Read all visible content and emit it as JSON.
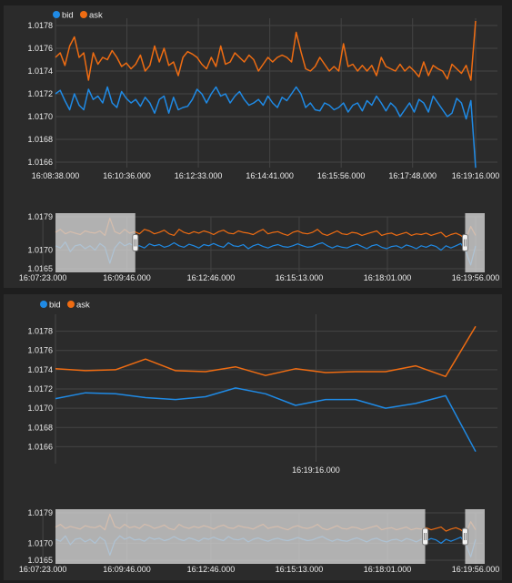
{
  "colors": {
    "bid": "#1f8ae5",
    "ask": "#ef6c12",
    "grid": "#444444",
    "selection": "#cfcfcf"
  },
  "chart_data": [
    {
      "type": "line",
      "role": "main",
      "legend": [
        "bid",
        "ask"
      ],
      "ylim": [
        1.0166,
        1.0178
      ],
      "yticks": [
        "1.0178",
        "1.0176",
        "1.0174",
        "1.0172",
        "1.0170",
        "1.0168",
        "1.0166"
      ],
      "xticks": [
        "16:08:38.000",
        "16:10:36.000",
        "16:12:33.000",
        "16:14:41.000",
        "16:15:56.000",
        "16:17:48.000",
        "16:19:16.000"
      ],
      "grid": true,
      "legend_position": "top-left",
      "series": [
        {
          "name": "bid",
          "values": [
            1.0172,
            1.01723,
            1.01714,
            1.01706,
            1.0172,
            1.0171,
            1.01706,
            1.01724,
            1.01715,
            1.01718,
            1.01712,
            1.01726,
            1.01712,
            1.01708,
            1.01722,
            1.01716,
            1.01712,
            1.01715,
            1.01709,
            1.01717,
            1.01712,
            1.01703,
            1.01715,
            1.01718,
            1.01703,
            1.01717,
            1.01706,
            1.01708,
            1.01709,
            1.01715,
            1.01724,
            1.0172,
            1.01712,
            1.0172,
            1.01726,
            1.01718,
            1.0172,
            1.01712,
            1.01718,
            1.01722,
            1.01715,
            1.0171,
            1.01712,
            1.01715,
            1.0171,
            1.01718,
            1.01712,
            1.01708,
            1.01717,
            1.01714,
            1.0172,
            1.01726,
            1.0172,
            1.01708,
            1.01712,
            1.01706,
            1.01705,
            1.01712,
            1.0171,
            1.01706,
            1.01708,
            1.01712,
            1.01704,
            1.0171,
            1.01712,
            1.01705,
            1.01714,
            1.0171,
            1.01718,
            1.01712,
            1.01705,
            1.01712,
            1.01708,
            1.017,
            1.01706,
            1.01712,
            1.01704,
            1.01715,
            1.01712,
            1.01704,
            1.01718,
            1.01712,
            1.01706,
            1.017,
            1.01703,
            1.01716,
            1.01712,
            1.01698,
            1.01714,
            1.01655
          ]
        },
        {
          "name": "ask",
          "values": [
            1.01752,
            1.01756,
            1.01745,
            1.01762,
            1.0177,
            1.01752,
            1.01756,
            1.01732,
            1.01756,
            1.01746,
            1.01752,
            1.0175,
            1.01758,
            1.01752,
            1.01744,
            1.01747,
            1.01742,
            1.01746,
            1.01754,
            1.0174,
            1.01745,
            1.01762,
            1.01748,
            1.0176,
            1.01745,
            1.01748,
            1.01736,
            1.01752,
            1.01757,
            1.01755,
            1.01752,
            1.01746,
            1.01742,
            1.01752,
            1.01744,
            1.01762,
            1.01746,
            1.01748,
            1.01756,
            1.01752,
            1.01748,
            1.01754,
            1.0175,
            1.0174,
            1.01746,
            1.01752,
            1.01748,
            1.01752,
            1.01754,
            1.01752,
            1.01748,
            1.01774,
            1.01757,
            1.01742,
            1.0174,
            1.01744,
            1.01752,
            1.01746,
            1.0174,
            1.01744,
            1.0174,
            1.01764,
            1.01744,
            1.01746,
            1.0174,
            1.01745,
            1.0174,
            1.01745,
            1.01736,
            1.01752,
            1.01744,
            1.01742,
            1.0174,
            1.01746,
            1.0174,
            1.01744,
            1.0174,
            1.01735,
            1.01748,
            1.01736,
            1.01745,
            1.01742,
            1.0174,
            1.01733,
            1.01746,
            1.01742,
            1.01738,
            1.01745,
            1.01732,
            1.01784
          ]
        }
      ]
    },
    {
      "type": "line",
      "role": "navigator",
      "ylim": [
        1.0165,
        1.0179
      ],
      "yticks": [
        "1.0179",
        "1.0170",
        "1.0165"
      ],
      "xticks": [
        "16:07:23.000",
        "16:09:46.000",
        "16:12:46.000",
        "16:15:13.000",
        "16:18:01.000",
        "16:19:56.000"
      ],
      "selection": [
        0.19,
        0.975
      ],
      "series": [
        {
          "name": "bid",
          "values": [
            1.01712,
            1.01706,
            1.01722,
            1.01696,
            1.01712,
            1.01715,
            1.01704,
            1.01712,
            1.017,
            1.01718,
            1.01708,
            1.01665,
            1.01706,
            1.01722,
            1.01712,
            1.01718,
            1.0171,
            1.01712,
            1.01706,
            1.01717,
            1.01712,
            1.01715,
            1.01708,
            1.01712,
            1.0172,
            1.01712,
            1.01708,
            1.01716,
            1.01712,
            1.01706,
            1.01715,
            1.01712,
            1.01718,
            1.01712,
            1.01708,
            1.0172,
            1.01712,
            1.0171,
            1.01715,
            1.01704,
            1.01712,
            1.01716,
            1.0171,
            1.01706,
            1.01712,
            1.01715,
            1.0171,
            1.01708,
            1.01712,
            1.01717,
            1.01712,
            1.01708,
            1.0171,
            1.01716,
            1.0172,
            1.01712,
            1.01706,
            1.01712,
            1.01708,
            1.01706,
            1.01712,
            1.01716,
            1.0171,
            1.01704,
            1.01712,
            1.01715,
            1.01708,
            1.01704,
            1.0171,
            1.01712,
            1.01706,
            1.01714,
            1.0171,
            1.01704,
            1.01712,
            1.01708,
            1.01714,
            1.0171,
            1.017,
            1.01712,
            1.01706,
            1.01712,
            1.01718,
            1.01698,
            1.0166,
            1.01712
          ]
        },
        {
          "name": "ask",
          "values": [
            1.01748,
            1.01756,
            1.01744,
            1.0175,
            1.01746,
            1.01742,
            1.01752,
            1.01748,
            1.01746,
            1.01752,
            1.0174,
            1.01786,
            1.0175,
            1.01744,
            1.01756,
            1.01746,
            1.0175,
            1.01744,
            1.01756,
            1.01752,
            1.01744,
            1.01748,
            1.01754,
            1.01744,
            1.0174,
            1.01756,
            1.01748,
            1.01744,
            1.0175,
            1.01746,
            1.01752,
            1.01748,
            1.01742,
            1.0175,
            1.01754,
            1.01746,
            1.01744,
            1.01752,
            1.01748,
            1.01746,
            1.01742,
            1.0175,
            1.01756,
            1.01744,
            1.01748,
            1.0175,
            1.01744,
            1.0174,
            1.01748,
            1.01752,
            1.01746,
            1.01744,
            1.01748,
            1.01756,
            1.01744,
            1.0174,
            1.01746,
            1.01752,
            1.01744,
            1.01742,
            1.01748,
            1.01746,
            1.0174,
            1.01744,
            1.01748,
            1.01752,
            1.0174,
            1.01744,
            1.01746,
            1.0174,
            1.01744,
            1.01748,
            1.0174,
            1.01744,
            1.01742,
            1.01746,
            1.0174,
            1.01744,
            1.01748,
            1.01736,
            1.01742,
            1.01746,
            1.0174,
            1.01728,
            1.01764,
            1.0174
          ]
        }
      ]
    },
    {
      "type": "line",
      "role": "main",
      "legend": [
        "bid",
        "ask"
      ],
      "ylim": [
        1.0165,
        1.0179
      ],
      "yticks": [
        "1.0178",
        "1.0176",
        "1.0174",
        "1.0172",
        "1.0170",
        "1.0168",
        "1.0166"
      ],
      "xticks": [
        "16:19:16.000"
      ],
      "grid": true,
      "legend_position": "top-left",
      "series": [
        {
          "name": "bid",
          "values": [
            1.0171,
            1.01716,
            1.01715,
            1.01711,
            1.01709,
            1.01712,
            1.01721,
            1.01715,
            1.01703,
            1.01709,
            1.01709,
            1.017,
            1.01705,
            1.01713,
            1.01655
          ]
        },
        {
          "name": "ask",
          "values": [
            1.01741,
            1.01739,
            1.0174,
            1.01751,
            1.01739,
            1.01738,
            1.01743,
            1.01734,
            1.01741,
            1.01737,
            1.01738,
            1.01738,
            1.01744,
            1.01733,
            1.01785
          ]
        }
      ]
    },
    {
      "type": "line",
      "role": "navigator",
      "ylim": [
        1.0165,
        1.0179
      ],
      "yticks": [
        "1.0179",
        "1.0170",
        "1.0165"
      ],
      "xticks": [
        "16:07:23.000",
        "16:09:46.000",
        "16:12:46.000",
        "16:15:13.000",
        "16:18:01.000",
        "16:19:56.000"
      ],
      "selection": [
        0.88,
        0.975
      ],
      "series": [
        {
          "name": "bid",
          "values": [
            1.01712,
            1.01706,
            1.01722,
            1.01696,
            1.01712,
            1.01715,
            1.01704,
            1.01712,
            1.017,
            1.01718,
            1.01708,
            1.01665,
            1.01706,
            1.01722,
            1.01712,
            1.01718,
            1.0171,
            1.01712,
            1.01706,
            1.01717,
            1.01712,
            1.01715,
            1.01708,
            1.01712,
            1.0172,
            1.01712,
            1.01708,
            1.01716,
            1.01712,
            1.01706,
            1.01715,
            1.01712,
            1.01718,
            1.01712,
            1.01708,
            1.0172,
            1.01712,
            1.0171,
            1.01715,
            1.01704,
            1.01712,
            1.01716,
            1.0171,
            1.01706,
            1.01712,
            1.01715,
            1.0171,
            1.01708,
            1.01712,
            1.01717,
            1.01712,
            1.01708,
            1.0171,
            1.01716,
            1.0172,
            1.01712,
            1.01706,
            1.01712,
            1.01708,
            1.01706,
            1.01712,
            1.01716,
            1.0171,
            1.01704,
            1.01712,
            1.01715,
            1.01708,
            1.01704,
            1.0171,
            1.01712,
            1.01706,
            1.01714,
            1.0171,
            1.01704,
            1.01712,
            1.01708,
            1.01714,
            1.0171,
            1.017,
            1.01712,
            1.01706,
            1.01712,
            1.01718,
            1.01698,
            1.0166,
            1.01712
          ]
        },
        {
          "name": "ask",
          "values": [
            1.01748,
            1.01756,
            1.01744,
            1.0175,
            1.01746,
            1.01742,
            1.01752,
            1.01748,
            1.01746,
            1.01752,
            1.0174,
            1.01786,
            1.0175,
            1.01744,
            1.01756,
            1.01746,
            1.0175,
            1.01744,
            1.01756,
            1.01752,
            1.01744,
            1.01748,
            1.01754,
            1.01744,
            1.0174,
            1.01756,
            1.01748,
            1.01744,
            1.0175,
            1.01746,
            1.01752,
            1.01748,
            1.01742,
            1.0175,
            1.01754,
            1.01746,
            1.01744,
            1.01752,
            1.01748,
            1.01746,
            1.01742,
            1.0175,
            1.01756,
            1.01744,
            1.01748,
            1.0175,
            1.01744,
            1.0174,
            1.01748,
            1.01752,
            1.01746,
            1.01744,
            1.01748,
            1.01756,
            1.01744,
            1.0174,
            1.01746,
            1.01752,
            1.01744,
            1.01742,
            1.01748,
            1.01746,
            1.0174,
            1.01744,
            1.01748,
            1.01752,
            1.0174,
            1.01744,
            1.01746,
            1.0174,
            1.01744,
            1.01748,
            1.0174,
            1.01744,
            1.01742,
            1.01746,
            1.0174,
            1.01744,
            1.01748,
            1.01736,
            1.01742,
            1.01746,
            1.0174,
            1.01728,
            1.01764,
            1.0174
          ]
        }
      ]
    }
  ]
}
